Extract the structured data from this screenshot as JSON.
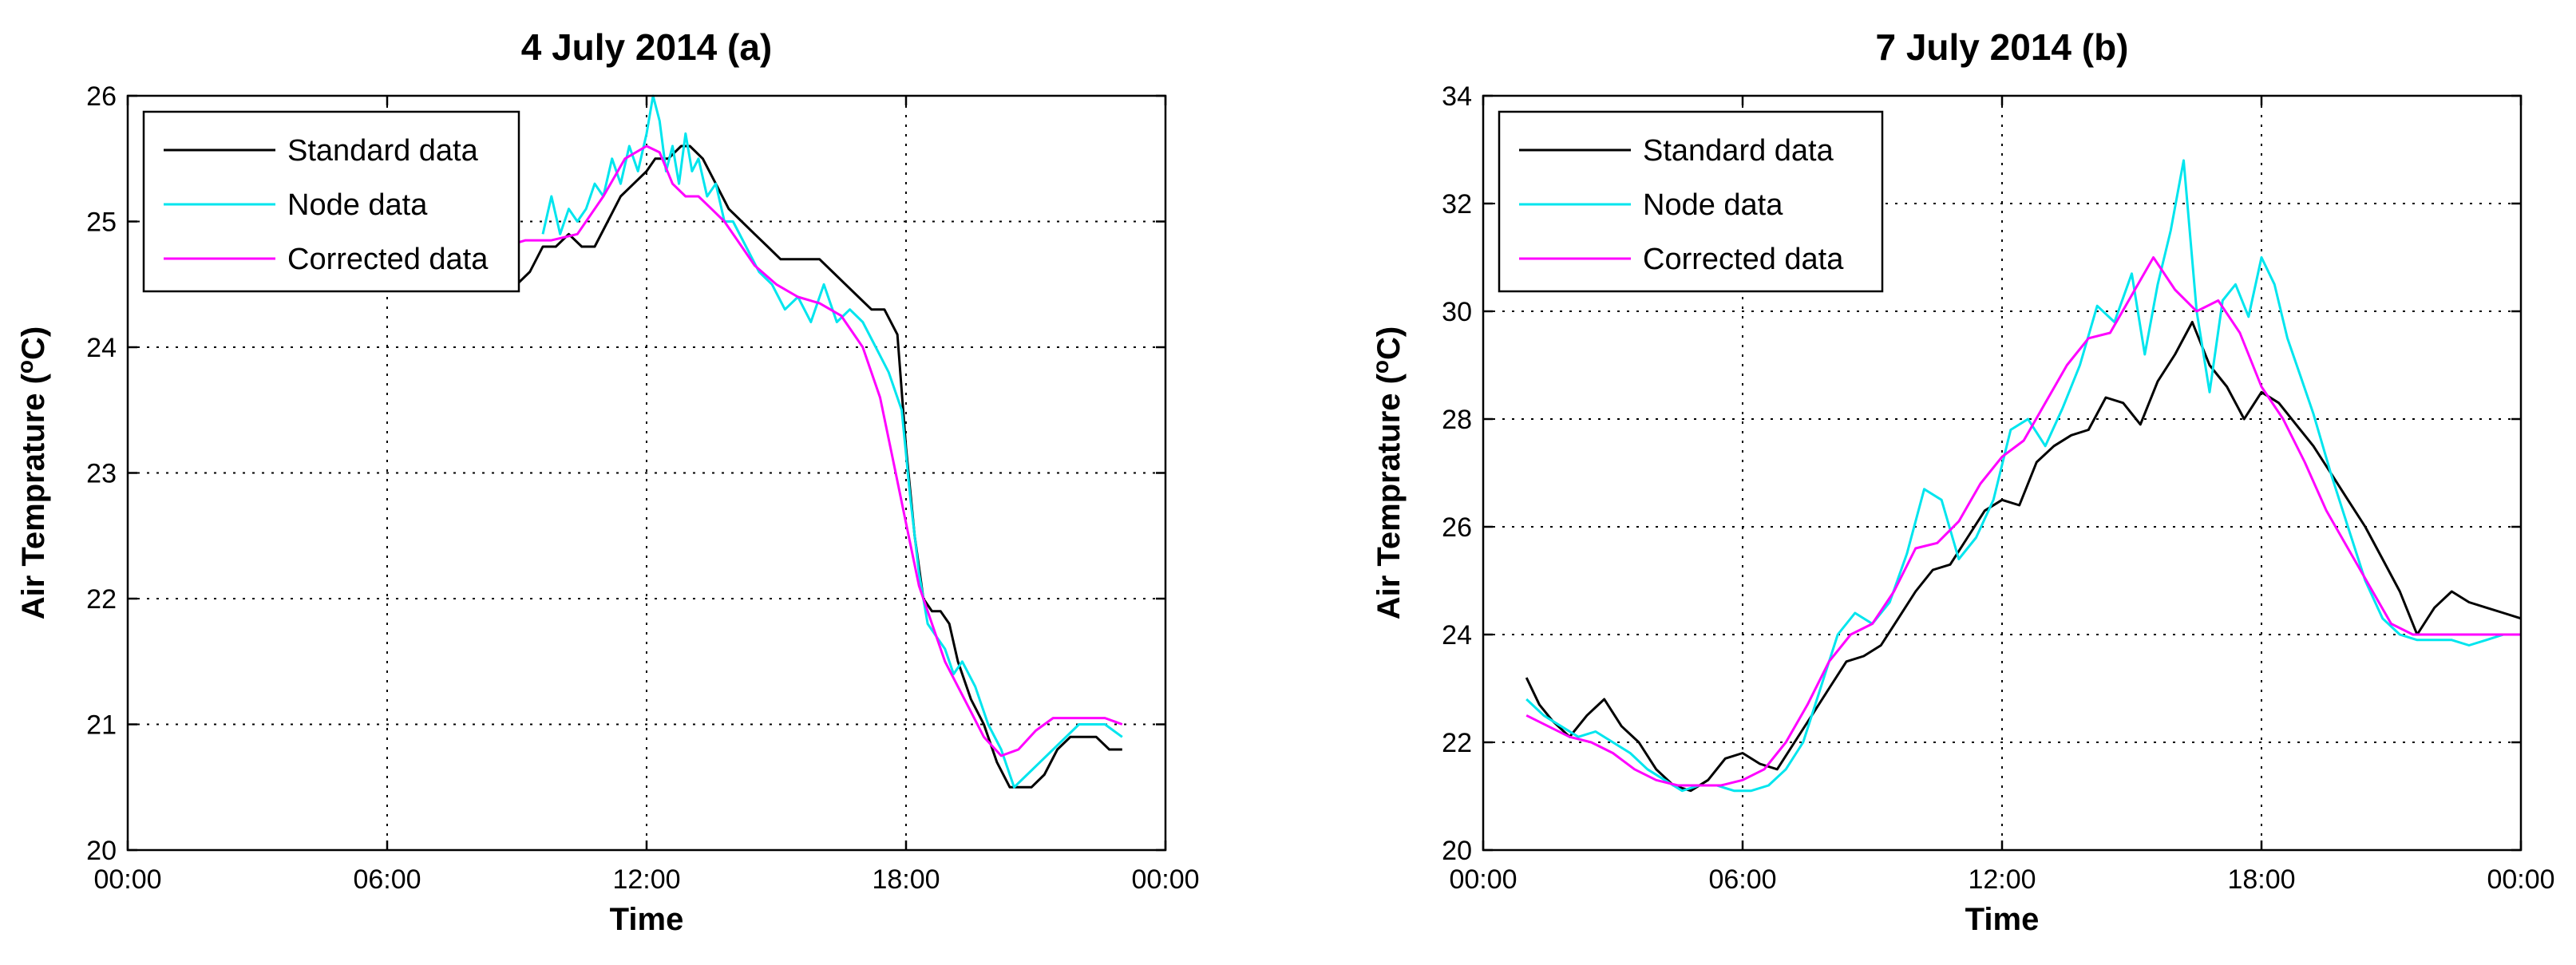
{
  "chart_data": [
    {
      "type": "line",
      "title": "4 July 2014 (a)",
      "xlabel": "Time",
      "ylabel": "Air Temprature (",
      "ylabel_sup": "o",
      "ylabel_end": "C)",
      "xlim": [
        0,
        24
      ],
      "ylim": [
        20,
        26
      ],
      "xtick_labels": [
        "00:00",
        "06:00",
        "12:00",
        "18:00",
        "00:00"
      ],
      "xticks": [
        0,
        6,
        12,
        18,
        24
      ],
      "ytick_labels": [
        "20",
        "21",
        "22",
        "23",
        "24",
        "25",
        "26"
      ],
      "yticks": [
        20,
        21,
        22,
        23,
        24,
        25,
        26
      ],
      "grid": true,
      "legend_position": "top-left",
      "series": [
        {
          "name": "Standard data",
          "color": "#000000",
          "x": [
            8.7,
            9.0,
            9.3,
            9.6,
            9.9,
            10.2,
            10.5,
            10.8,
            11.1,
            11.4,
            11.7,
            12.0,
            12.2,
            12.5,
            12.8,
            13.0,
            13.3,
            13.6,
            13.9,
            14.2,
            14.5,
            14.8,
            15.1,
            15.4,
            15.7,
            16.0,
            16.3,
            16.6,
            16.9,
            17.2,
            17.5,
            17.8,
            18.0,
            18.2,
            18.4,
            18.6,
            18.8,
            19.0,
            19.2,
            19.5,
            19.8,
            20.1,
            20.4,
            20.7,
            20.9,
            21.2,
            21.5,
            21.8,
            22.1,
            22.4,
            22.7,
            23.0
          ],
          "values": [
            24.5,
            24.5,
            24.6,
            24.8,
            24.8,
            24.9,
            24.8,
            24.8,
            25.0,
            25.2,
            25.3,
            25.4,
            25.5,
            25.5,
            25.6,
            25.6,
            25.5,
            25.3,
            25.1,
            25.0,
            24.9,
            24.8,
            24.7,
            24.7,
            24.7,
            24.7,
            24.6,
            24.5,
            24.4,
            24.3,
            24.3,
            24.1,
            23.2,
            22.5,
            22.0,
            21.9,
            21.9,
            21.8,
            21.5,
            21.2,
            21.0,
            20.7,
            20.5,
            20.5,
            20.5,
            20.6,
            20.8,
            20.9,
            20.9,
            20.9,
            20.8,
            20.8
          ]
        },
        {
          "name": "Node data",
          "color": "#00e5ee",
          "x": [
            9.6,
            9.8,
            10.0,
            10.2,
            10.4,
            10.6,
            10.8,
            11.0,
            11.2,
            11.4,
            11.6,
            11.8,
            12.0,
            12.15,
            12.3,
            12.45,
            12.6,
            12.75,
            12.9,
            13.05,
            13.2,
            13.4,
            13.6,
            13.8,
            14.0,
            14.3,
            14.6,
            14.9,
            15.2,
            15.5,
            15.8,
            16.1,
            16.4,
            16.7,
            17.0,
            17.3,
            17.6,
            17.9,
            18.1,
            18.3,
            18.5,
            18.7,
            18.9,
            19.1,
            19.3,
            19.6,
            19.9,
            20.2,
            20.5,
            20.8,
            21.1,
            21.4,
            21.7,
            22.0,
            22.3,
            22.6,
            23.0
          ],
          "values": [
            24.9,
            25.2,
            24.9,
            25.1,
            25.0,
            25.1,
            25.3,
            25.2,
            25.5,
            25.3,
            25.6,
            25.4,
            25.7,
            26.0,
            25.8,
            25.4,
            25.6,
            25.3,
            25.7,
            25.4,
            25.5,
            25.2,
            25.3,
            25.0,
            25.0,
            24.8,
            24.6,
            24.5,
            24.3,
            24.4,
            24.2,
            24.5,
            24.2,
            24.3,
            24.2,
            24.0,
            23.8,
            23.5,
            22.8,
            22.2,
            21.8,
            21.7,
            21.6,
            21.4,
            21.5,
            21.3,
            21.0,
            20.8,
            20.5,
            20.6,
            20.7,
            20.8,
            20.9,
            21.0,
            21.0,
            21.0,
            20.9
          ]
        },
        {
          "name": "Corrected data",
          "color": "#ff00ff",
          "x": [
            8.7,
            9.2,
            9.8,
            10.4,
            11.0,
            11.5,
            12.0,
            12.3,
            12.6,
            12.9,
            13.2,
            13.5,
            13.8,
            14.1,
            14.5,
            15.0,
            15.5,
            16.0,
            16.5,
            17.0,
            17.4,
            17.7,
            18.0,
            18.3,
            18.6,
            18.9,
            19.2,
            19.5,
            19.8,
            20.2,
            20.6,
            21.0,
            21.4,
            21.8,
            22.2,
            22.6,
            23.0
          ],
          "values": [
            24.8,
            24.85,
            24.85,
            24.9,
            25.2,
            25.5,
            25.6,
            25.55,
            25.3,
            25.2,
            25.2,
            25.1,
            25.0,
            24.85,
            24.65,
            24.5,
            24.4,
            24.35,
            24.25,
            24.0,
            23.6,
            23.1,
            22.6,
            22.1,
            21.8,
            21.5,
            21.3,
            21.1,
            20.9,
            20.75,
            20.8,
            20.95,
            21.05,
            21.05,
            21.05,
            21.05,
            21.0
          ]
        }
      ]
    },
    {
      "type": "line",
      "title": "7 July 2014 (b)",
      "xlabel": "Time",
      "ylabel": "Air Temprature (",
      "ylabel_sup": "o",
      "ylabel_end": "C)",
      "xlim": [
        0,
        24
      ],
      "ylim": [
        20,
        34
      ],
      "xtick_labels": [
        "00:00",
        "06:00",
        "12:00",
        "18:00",
        "00:00"
      ],
      "xticks": [
        0,
        6,
        12,
        18,
        24
      ],
      "ytick_labels": [
        "20",
        "22",
        "24",
        "26",
        "28",
        "30",
        "32",
        "34"
      ],
      "yticks": [
        20,
        22,
        24,
        26,
        28,
        30,
        32,
        34
      ],
      "grid": true,
      "legend_position": "top-left",
      "series": [
        {
          "name": "Standard data",
          "color": "#000000",
          "x": [
            1.0,
            1.3,
            1.6,
            2.0,
            2.4,
            2.8,
            3.2,
            3.6,
            4.0,
            4.4,
            4.8,
            5.2,
            5.6,
            6.0,
            6.4,
            6.8,
            7.2,
            7.6,
            8.0,
            8.4,
            8.8,
            9.2,
            9.6,
            10.0,
            10.4,
            10.8,
            11.2,
            11.6,
            12.0,
            12.4,
            12.8,
            13.2,
            13.6,
            14.0,
            14.4,
            14.8,
            15.2,
            15.6,
            16.0,
            16.4,
            16.8,
            17.2,
            17.6,
            18.0,
            18.4,
            18.8,
            19.2,
            19.6,
            20.0,
            20.4,
            20.8,
            21.2,
            21.6,
            22.0,
            22.4,
            22.8,
            23.2,
            23.6,
            24.0
          ],
          "values": [
            23.2,
            22.7,
            22.4,
            22.1,
            22.5,
            22.8,
            22.3,
            22.0,
            21.5,
            21.2,
            21.1,
            21.3,
            21.7,
            21.8,
            21.6,
            21.5,
            22.0,
            22.5,
            23.0,
            23.5,
            23.6,
            23.8,
            24.3,
            24.8,
            25.2,
            25.3,
            25.8,
            26.3,
            26.5,
            26.4,
            27.2,
            27.5,
            27.7,
            27.8,
            28.4,
            28.3,
            27.9,
            28.7,
            29.2,
            29.8,
            29.0,
            28.6,
            28.0,
            28.5,
            28.3,
            27.9,
            27.5,
            27.0,
            26.5,
            26.0,
            25.4,
            24.8,
            24.0,
            24.5,
            24.8,
            24.6,
            24.5,
            24.4,
            24.3
          ]
        },
        {
          "name": "Node data",
          "color": "#00e5ee",
          "x": [
            1.0,
            1.4,
            1.8,
            2.2,
            2.6,
            3.0,
            3.4,
            3.8,
            4.2,
            4.6,
            5.0,
            5.4,
            5.8,
            6.2,
            6.6,
            7.0,
            7.4,
            7.8,
            8.2,
            8.6,
            9.0,
            9.4,
            9.8,
            10.2,
            10.6,
            11.0,
            11.4,
            11.8,
            12.2,
            12.6,
            13.0,
            13.4,
            13.8,
            14.2,
            14.6,
            15.0,
            15.3,
            15.6,
            15.9,
            16.2,
            16.5,
            16.8,
            17.1,
            17.4,
            17.7,
            18.0,
            18.3,
            18.6,
            18.9,
            19.2,
            19.6,
            20.0,
            20.4,
            20.8,
            21.2,
            21.6,
            22.0,
            22.4,
            22.8,
            23.2,
            23.6,
            24.0
          ],
          "values": [
            22.8,
            22.5,
            22.3,
            22.1,
            22.2,
            22.0,
            21.8,
            21.5,
            21.3,
            21.1,
            21.2,
            21.2,
            21.1,
            21.1,
            21.2,
            21.5,
            22.0,
            23.0,
            24.0,
            24.4,
            24.2,
            24.6,
            25.5,
            26.7,
            26.5,
            25.4,
            25.8,
            26.5,
            27.8,
            28.0,
            27.5,
            28.2,
            29.0,
            30.1,
            29.8,
            30.7,
            29.2,
            30.5,
            31.5,
            32.8,
            30.0,
            28.5,
            30.2,
            30.5,
            29.9,
            31.0,
            30.5,
            29.5,
            28.8,
            28.1,
            27.0,
            26.0,
            25.0,
            24.3,
            24.0,
            23.9,
            23.9,
            23.9,
            23.8,
            23.9,
            24.0,
            24.0
          ]
        },
        {
          "name": "Corrected data",
          "color": "#ff00ff",
          "x": [
            1.0,
            1.5,
            2.0,
            2.5,
            3.0,
            3.5,
            4.0,
            4.5,
            5.0,
            5.5,
            6.0,
            6.5,
            7.0,
            7.5,
            8.0,
            8.5,
            9.0,
            9.5,
            10.0,
            10.5,
            11.0,
            11.5,
            12.0,
            12.5,
            13.0,
            13.5,
            14.0,
            14.5,
            15.0,
            15.5,
            16.0,
            16.5,
            17.0,
            17.5,
            18.0,
            18.5,
            19.0,
            19.5,
            20.0,
            20.5,
            21.0,
            21.5,
            22.0,
            22.5,
            23.0,
            23.5,
            24.0
          ],
          "values": [
            22.5,
            22.3,
            22.1,
            22.0,
            21.8,
            21.5,
            21.3,
            21.2,
            21.2,
            21.2,
            21.3,
            21.5,
            22.0,
            22.7,
            23.5,
            24.0,
            24.2,
            24.8,
            25.6,
            25.7,
            26.1,
            26.8,
            27.3,
            27.6,
            28.3,
            29.0,
            29.5,
            29.6,
            30.3,
            31.0,
            30.4,
            30.0,
            30.2,
            29.6,
            28.6,
            28.0,
            27.2,
            26.3,
            25.6,
            24.9,
            24.2,
            24.0,
            24.0,
            24.0,
            24.0,
            24.0,
            24.0
          ]
        }
      ]
    }
  ]
}
